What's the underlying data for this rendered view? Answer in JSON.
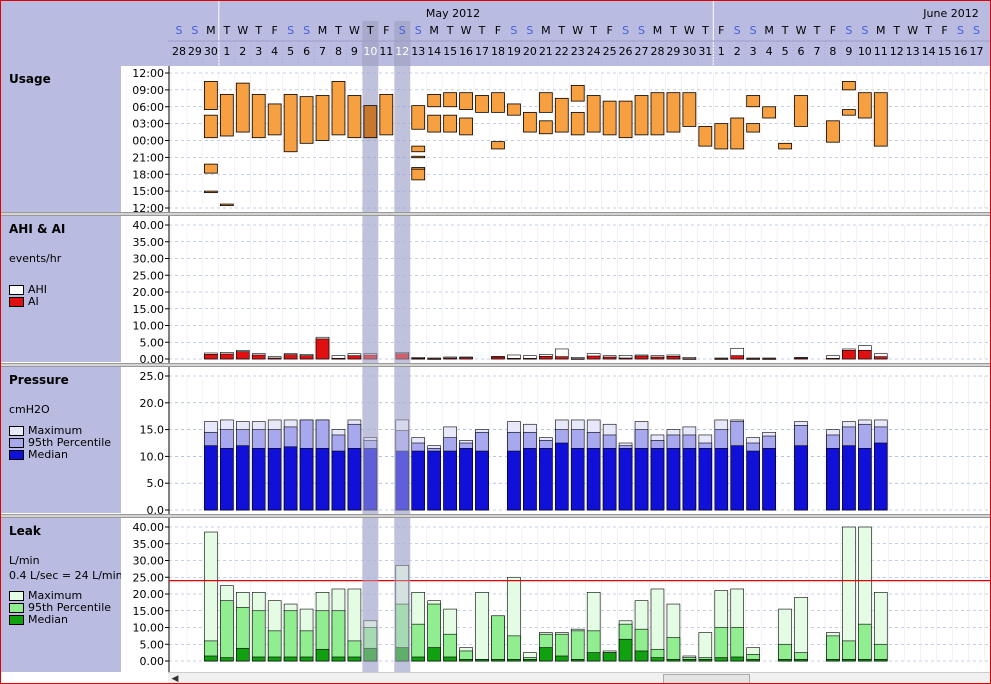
{
  "calendar": {
    "months": [
      {
        "label": "May 2012",
        "x_start_day": 1
      },
      {
        "label": "June 2012",
        "x_start_day": 32
      }
    ],
    "days": [
      {
        "num": "28",
        "dow": "S"
      },
      {
        "num": "29",
        "dow": "S"
      },
      {
        "num": "30",
        "dow": "M"
      },
      {
        "num": "1",
        "dow": "T"
      },
      {
        "num": "2",
        "dow": "W"
      },
      {
        "num": "3",
        "dow": "T"
      },
      {
        "num": "4",
        "dow": "F"
      },
      {
        "num": "5",
        "dow": "S"
      },
      {
        "num": "6",
        "dow": "S"
      },
      {
        "num": "7",
        "dow": "M"
      },
      {
        "num": "8",
        "dow": "T"
      },
      {
        "num": "9",
        "dow": "W"
      },
      {
        "num": "10",
        "dow": "T"
      },
      {
        "num": "11",
        "dow": "F"
      },
      {
        "num": "12",
        "dow": "S"
      },
      {
        "num": "13",
        "dow": "S"
      },
      {
        "num": "14",
        "dow": "M"
      },
      {
        "num": "15",
        "dow": "T"
      },
      {
        "num": "16",
        "dow": "W"
      },
      {
        "num": "17",
        "dow": "T"
      },
      {
        "num": "18",
        "dow": "F"
      },
      {
        "num": "19",
        "dow": "S"
      },
      {
        "num": "20",
        "dow": "S"
      },
      {
        "num": "21",
        "dow": "M"
      },
      {
        "num": "22",
        "dow": "T"
      },
      {
        "num": "23",
        "dow": "W"
      },
      {
        "num": "24",
        "dow": "T"
      },
      {
        "num": "25",
        "dow": "F"
      },
      {
        "num": "26",
        "dow": "S"
      },
      {
        "num": "27",
        "dow": "S"
      },
      {
        "num": "28",
        "dow": "M"
      },
      {
        "num": "29",
        "dow": "T"
      },
      {
        "num": "30",
        "dow": "W"
      },
      {
        "num": "31",
        "dow": "T"
      },
      {
        "num": "1",
        "dow": "F"
      },
      {
        "num": "2",
        "dow": "S"
      },
      {
        "num": "3",
        "dow": "S"
      },
      {
        "num": "4",
        "dow": "M"
      },
      {
        "num": "5",
        "dow": "T"
      },
      {
        "num": "6",
        "dow": "W"
      },
      {
        "num": "7",
        "dow": "T"
      },
      {
        "num": "8",
        "dow": "F"
      },
      {
        "num": "9",
        "dow": "S"
      },
      {
        "num": "10",
        "dow": "S"
      },
      {
        "num": "11",
        "dow": "M"
      },
      {
        "num": "12",
        "dow": "T"
      },
      {
        "num": "13",
        "dow": "W"
      },
      {
        "num": "14",
        "dow": "T"
      },
      {
        "num": "15",
        "dow": "F"
      },
      {
        "num": "16",
        "dow": "S"
      },
      {
        "num": "17",
        "dow": "S"
      }
    ],
    "selected_days": [
      12,
      14
    ]
  },
  "panels": {
    "usage": {
      "title": "Usage"
    },
    "ahi": {
      "title": "AHI & AI",
      "unit": "events/hr",
      "legend": [
        "AHI",
        "AI"
      ]
    },
    "pressure": {
      "title": "Pressure",
      "unit": "cmH2O",
      "legend": [
        "Maximum",
        "95th Percentile",
        "Median"
      ]
    },
    "leak": {
      "title": "Leak",
      "unit": "L/min",
      "note": "0.4 L/sec = 24 L/min",
      "legend": [
        "Maximum",
        "95th Percentile",
        "Median"
      ]
    }
  },
  "colors": {
    "usage_fill": "#f7a041",
    "usage_fill_selected": "#c8782e",
    "ahi": "#ffffff",
    "ai": "#e01010",
    "pressure_max": "#e8e8fb",
    "pressure_p95": "#a8a8ee",
    "pressure_median": "#1010d8",
    "leak_max": "#e4fce4",
    "leak_p95": "#90ee90",
    "leak_median": "#10a010",
    "threshold_line": "#e00000",
    "weekend_text": "#4060e0",
    "highlight_band": "#c0c2dc"
  },
  "chart_data": [
    {
      "type": "bar",
      "name": "usage",
      "title": "Usage",
      "y_ticks": [
        "12:00",
        "09:00",
        "06:00",
        "03:00",
        "00:00",
        "21:00",
        "18:00",
        "15:00",
        "12:00"
      ],
      "ylim_hours": [
        -12,
        12
      ],
      "note": "per-day session blocks as [start,end] in hours relative to midnight (negative = previous afternoon/evening)",
      "sessions": [
        [],
        [],
        [
          [
            5.5,
            10.5
          ],
          [
            0.5,
            4.5
          ],
          [
            -5.8,
            -4.2
          ],
          [
            -9.2,
            -9.0
          ]
        ],
        [
          [
            0.8,
            8.2
          ],
          [
            -11.4,
            -11.3
          ]
        ],
        [
          [
            1.5,
            10.2
          ]
        ],
        [
          [
            0.5,
            8.2
          ]
        ],
        [
          [
            1,
            6.5
          ]
        ],
        [
          [
            -2,
            8.2
          ]
        ],
        [
          [
            -0.5,
            7.8
          ]
        ],
        [
          [
            0,
            8
          ]
        ],
        [
          [
            1,
            10.5
          ]
        ],
        [
          [
            0.5,
            8
          ]
        ],
        [
          [
            0.5,
            6.2
          ]
        ],
        [
          [
            1,
            8.2
          ]
        ],
        [],
        [
          [
            2,
            6.2
          ],
          [
            -2,
            -1
          ],
          [
            -7,
            -5
          ],
          [
            -5.1,
            -4.8
          ],
          [
            -3,
            -2.8
          ]
        ],
        [
          [
            6,
            8.2
          ],
          [
            1.5,
            4.5
          ]
        ],
        [
          [
            6,
            8.5
          ],
          [
            1.5,
            4.5
          ]
        ],
        [
          [
            5.5,
            8.5
          ],
          [
            1,
            4
          ]
        ],
        [
          [
            5,
            8
          ]
        ],
        [
          [
            5,
            8.5
          ],
          [
            -1.5,
            -0.2
          ]
        ],
        [
          [
            4.5,
            6.5
          ]
        ],
        [
          [
            1.5,
            5
          ]
        ],
        [
          [
            5,
            8.5
          ],
          [
            1.2,
            3.5
          ]
        ],
        [
          [
            1.5,
            7.5
          ]
        ],
        [
          [
            7,
            9.8
          ],
          [
            1,
            5
          ]
        ],
        [
          [
            1.5,
            8
          ]
        ],
        [
          [
            1,
            7
          ]
        ],
        [
          [
            0.5,
            7
          ]
        ],
        [
          [
            1,
            8
          ]
        ],
        [
          [
            1,
            8.5
          ]
        ],
        [
          [
            1.5,
            8.5
          ]
        ],
        [
          [
            2.5,
            8.5
          ]
        ],
        [
          [
            -1,
            2.5
          ]
        ],
        [
          [
            -1.5,
            3
          ]
        ],
        [
          [
            -1.5,
            4
          ]
        ],
        [
          [
            1.5,
            3
          ],
          [
            6,
            8
          ]
        ],
        [
          [
            4,
            6
          ]
        ],
        [
          [
            -1.5,
            -0.5
          ]
        ],
        [
          [
            2.5,
            8
          ]
        ],
        [],
        [
          [
            -0.3,
            3.5
          ]
        ],
        [
          [
            4.5,
            5.5
          ],
          [
            9,
            10.5
          ]
        ],
        [
          [
            4,
            8.5
          ]
        ],
        [
          [
            -1,
            8.5
          ]
        ],
        [],
        [],
        [],
        [],
        [],
        []
      ]
    },
    {
      "type": "bar",
      "name": "ahi_ai",
      "title": "AHI & AI",
      "ylabel": "events/hr",
      "ylim": [
        0,
        40
      ],
      "y_ticks": [
        "40.00",
        "35.00",
        "30.00",
        "25.00",
        "20.00",
        "15.00",
        "10.00",
        "5.00",
        "0.00"
      ],
      "series": [
        {
          "name": "AHI",
          "values": [
            null,
            null,
            1.8,
            2,
            2.6,
            1.6,
            0.7,
            1.6,
            1.4,
            6.5,
            1,
            1.6,
            1.6,
            null,
            2,
            0.5,
            0.3,
            0.6,
            0.6,
            null,
            0.8,
            1.2,
            1,
            1.4,
            3,
            0.5,
            1.6,
            1,
            1.1,
            1.2,
            1,
            1.2,
            0.5,
            null,
            0.3,
            3.2,
            0.3,
            0.3,
            null,
            0.5,
            null,
            1,
            3,
            4,
            1.6,
            null,
            null,
            null,
            null,
            null,
            null
          ]
        },
        {
          "name": "AI",
          "values": [
            null,
            null,
            1.4,
            1.5,
            2.2,
            1.2,
            0.3,
            1.3,
            1,
            6,
            0.2,
            1,
            1.2,
            null,
            1.6,
            0.2,
            0.1,
            0.3,
            0.4,
            null,
            0.6,
            0.2,
            0.2,
            0.8,
            0.7,
            0.1,
            0.9,
            0.6,
            0.3,
            0.9,
            0.6,
            0.8,
            0.1,
            null,
            0.1,
            1,
            0.1,
            0.1,
            null,
            0.3,
            null,
            0.2,
            2.6,
            2.6,
            0.7,
            null,
            null,
            null,
            null,
            null,
            null
          ]
        }
      ]
    },
    {
      "type": "bar",
      "name": "pressure",
      "title": "Pressure",
      "ylabel": "cmH2O",
      "ylim": [
        0,
        25
      ],
      "y_ticks": [
        "25.0",
        "20.0",
        "15.0",
        "10.0",
        "5.0",
        "0.0"
      ],
      "series": [
        {
          "name": "Maximum",
          "values": [
            null,
            null,
            16.5,
            16.8,
            16.5,
            16.5,
            16.8,
            16.8,
            16.8,
            16.8,
            15,
            16.8,
            13.5,
            null,
            16.8,
            13.5,
            12,
            15.5,
            13,
            15,
            null,
            16.5,
            16,
            13.5,
            16.8,
            16.8,
            16.8,
            16,
            12.5,
            16.5,
            14,
            15,
            15.5,
            14,
            16.8,
            16.8,
            13.5,
            14.5,
            null,
            16.5,
            null,
            15,
            16.5,
            16.8,
            16.8,
            null,
            null,
            null,
            null,
            null,
            null
          ]
        },
        {
          "name": "95th Percentile",
          "values": [
            null,
            null,
            14.5,
            15,
            15,
            15,
            15,
            15.5,
            16.8,
            16.8,
            14,
            16,
            13,
            null,
            14.8,
            12.5,
            11.5,
            13.5,
            12.5,
            14.5,
            null,
            14.5,
            14.5,
            13,
            15,
            15,
            14.5,
            14,
            12,
            15,
            13,
            14,
            14,
            12.5,
            15,
            16.5,
            12.5,
            13.8,
            null,
            15.8,
            null,
            14,
            15.5,
            16,
            15.5,
            null,
            null,
            null,
            null,
            null,
            null
          ]
        },
        {
          "name": "Median",
          "values": [
            null,
            null,
            12,
            11.5,
            12,
            11.5,
            11.5,
            11.8,
            11.5,
            11.5,
            11,
            11.5,
            11.5,
            null,
            11,
            11,
            11,
            11,
            11.5,
            11,
            null,
            11,
            11.5,
            11.5,
            12.5,
            11.5,
            11.5,
            11.5,
            11.5,
            11.5,
            11.5,
            11.5,
            11.5,
            11.5,
            11.5,
            12,
            11,
            11.5,
            null,
            12,
            null,
            11.5,
            12,
            11.5,
            12.5,
            null,
            null,
            null,
            null,
            null,
            null
          ]
        }
      ]
    },
    {
      "type": "bar",
      "name": "leak",
      "title": "Leak",
      "ylabel": "L/min",
      "ylim": [
        0,
        40
      ],
      "y_ticks": [
        "40.00",
        "35.00",
        "30.00",
        "25.00",
        "20.00",
        "15.00",
        "10.00",
        "5.00",
        "0.00"
      ],
      "threshold": 24,
      "series": [
        {
          "name": "Maximum",
          "values": [
            null,
            null,
            38.5,
            22.5,
            20.5,
            20.5,
            18,
            17,
            15.5,
            20.5,
            21.5,
            21.5,
            12,
            null,
            28.5,
            20.5,
            18,
            15.5,
            4,
            20.5,
            13.5,
            25,
            2.5,
            8.5,
            8.5,
            9.5,
            20.5,
            3,
            12,
            18,
            21.5,
            17,
            1.5,
            8.5,
            21,
            21.5,
            4,
            null,
            15.5,
            19,
            null,
            8.5,
            40,
            40,
            20.5,
            null,
            null,
            null,
            null,
            null,
            null
          ]
        },
        {
          "name": "95th Percentile",
          "values": [
            null,
            null,
            6,
            18,
            16,
            15,
            9,
            15,
            9,
            15,
            15,
            6,
            10,
            null,
            17,
            11,
            17,
            8,
            3,
            0.5,
            13.5,
            7.5,
            1,
            8,
            8,
            9,
            9,
            2.5,
            11,
            9.5,
            3.5,
            7,
            1,
            1,
            10,
            10,
            2,
            null,
            5,
            2.5,
            null,
            7.5,
            6,
            11,
            5,
            null,
            null,
            null,
            null,
            null,
            null
          ]
        },
        {
          "name": "Median",
          "values": [
            null,
            null,
            1.5,
            1,
            3.8,
            1.2,
            1.2,
            1.2,
            1.2,
            3.5,
            1.2,
            1.2,
            3.8,
            null,
            4,
            1.2,
            4,
            1.2,
            0.5,
            0.5,
            0.5,
            0.5,
            0.5,
            4,
            1.5,
            0.5,
            2.5,
            2.5,
            6.5,
            3,
            1,
            0.5,
            0.5,
            0.5,
            1,
            1.2,
            0.5,
            null,
            0.5,
            0.5,
            null,
            0.5,
            0.5,
            0.5,
            0.5,
            null,
            null,
            null,
            null,
            null,
            null
          ]
        }
      ]
    }
  ]
}
